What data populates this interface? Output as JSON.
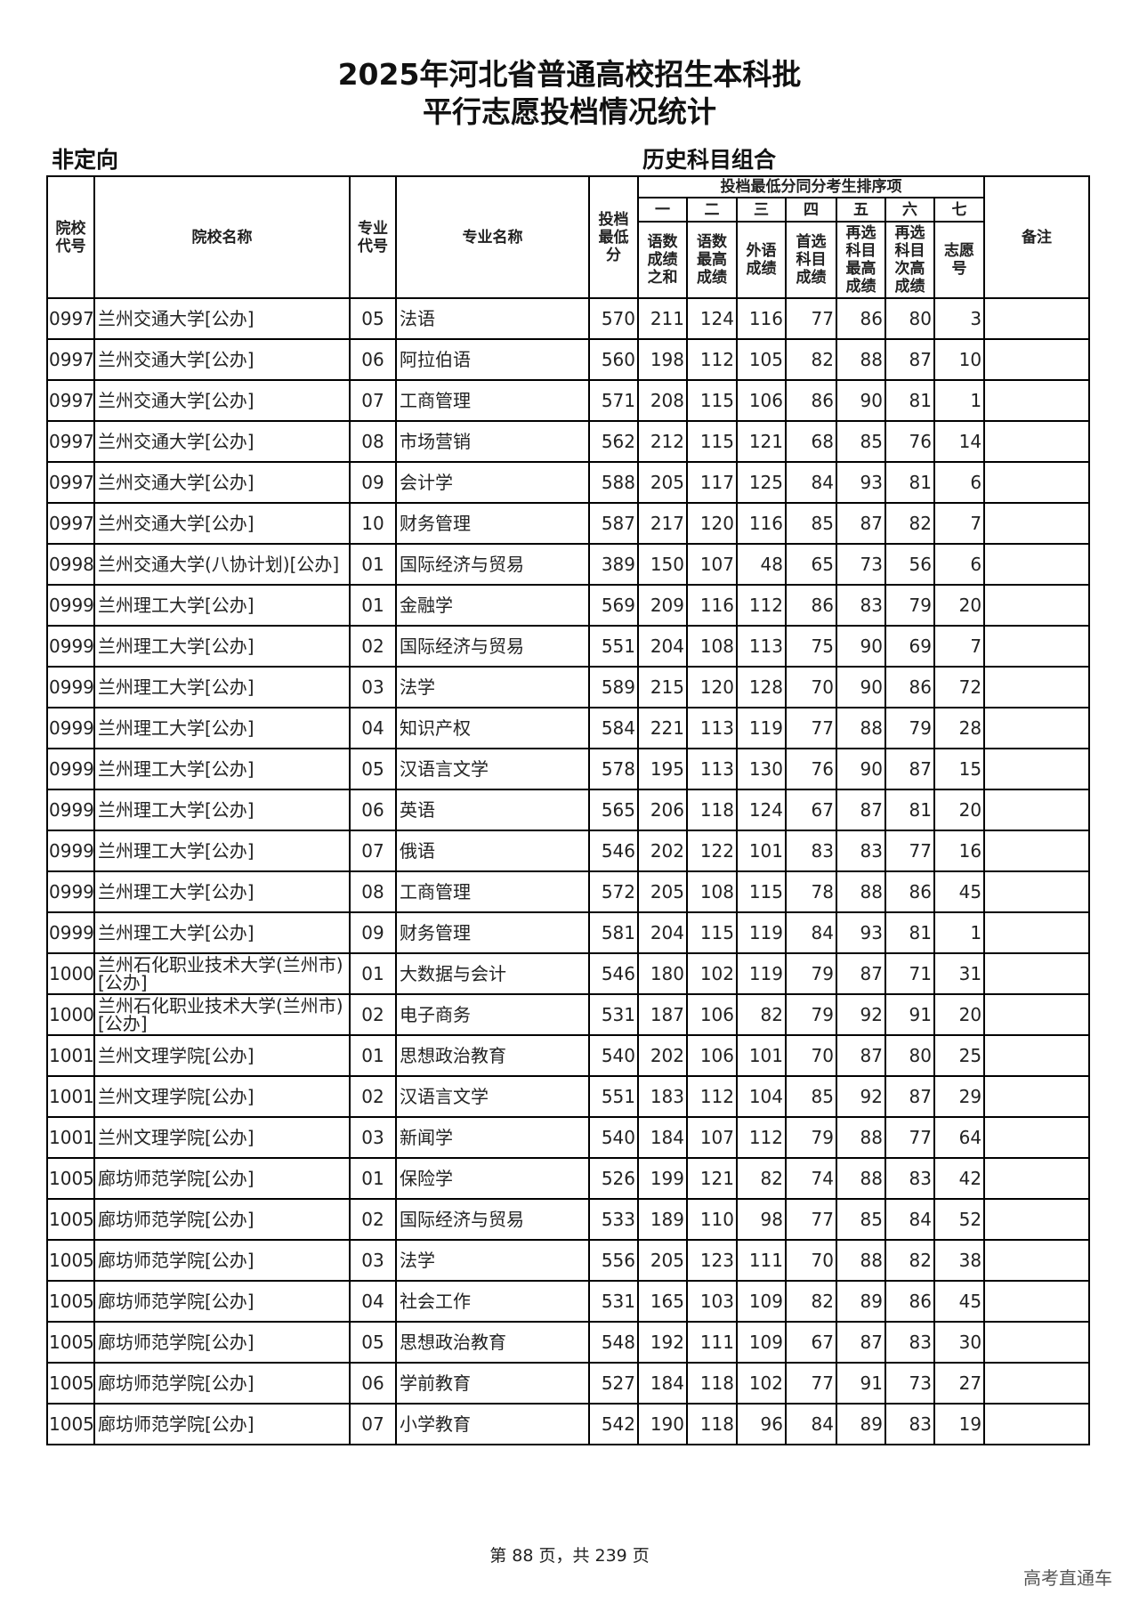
{
  "title": {
    "line1": "2025年河北省普通高校招生本科批",
    "line2": "平行志愿投档情况统计"
  },
  "subtitle_left": "非定向",
  "subtitle_right": "历史科目组合",
  "headers": {
    "school_code": "院校代号",
    "school_name": "院校名称",
    "major_code": "专业代号",
    "major_name": "专业名称",
    "min_score": "投档最低分",
    "group": "投档最低分同分考生排序项",
    "ranks": [
      "一",
      "二",
      "三",
      "四",
      "五",
      "六",
      "七"
    ],
    "rank_labels": [
      "语数成绩之和",
      "语数最高成绩",
      "外语成绩",
      "首选科目成绩",
      "再选科目最高成绩",
      "再选科目次高成绩",
      "志愿号"
    ],
    "remarks": "备注"
  },
  "rows": [
    [
      "0997",
      "兰州交通大学[公办]",
      "05",
      "法语",
      "570",
      "211",
      "124",
      "116",
      "77",
      "86",
      "80",
      "3",
      ""
    ],
    [
      "0997",
      "兰州交通大学[公办]",
      "06",
      "阿拉伯语",
      "560",
      "198",
      "112",
      "105",
      "82",
      "88",
      "87",
      "10",
      ""
    ],
    [
      "0997",
      "兰州交通大学[公办]",
      "07",
      "工商管理",
      "571",
      "208",
      "115",
      "106",
      "86",
      "90",
      "81",
      "1",
      ""
    ],
    [
      "0997",
      "兰州交通大学[公办]",
      "08",
      "市场营销",
      "562",
      "212",
      "115",
      "121",
      "68",
      "85",
      "76",
      "14",
      ""
    ],
    [
      "0997",
      "兰州交通大学[公办]",
      "09",
      "会计学",
      "588",
      "205",
      "117",
      "125",
      "84",
      "93",
      "81",
      "6",
      ""
    ],
    [
      "0997",
      "兰州交通大学[公办]",
      "10",
      "财务管理",
      "587",
      "217",
      "120",
      "116",
      "85",
      "87",
      "82",
      "7",
      ""
    ],
    [
      "0998",
      "兰州交通大学(八协计划)[公办]",
      "01",
      "国际经济与贸易",
      "389",
      "150",
      "107",
      "48",
      "65",
      "73",
      "56",
      "6",
      ""
    ],
    [
      "0999",
      "兰州理工大学[公办]",
      "01",
      "金融学",
      "569",
      "209",
      "116",
      "112",
      "86",
      "83",
      "79",
      "20",
      ""
    ],
    [
      "0999",
      "兰州理工大学[公办]",
      "02",
      "国际经济与贸易",
      "551",
      "204",
      "108",
      "113",
      "75",
      "90",
      "69",
      "7",
      ""
    ],
    [
      "0999",
      "兰州理工大学[公办]",
      "03",
      "法学",
      "589",
      "215",
      "120",
      "128",
      "70",
      "90",
      "86",
      "72",
      ""
    ],
    [
      "0999",
      "兰州理工大学[公办]",
      "04",
      "知识产权",
      "584",
      "221",
      "113",
      "119",
      "77",
      "88",
      "79",
      "28",
      ""
    ],
    [
      "0999",
      "兰州理工大学[公办]",
      "05",
      "汉语言文学",
      "578",
      "195",
      "113",
      "130",
      "76",
      "90",
      "87",
      "15",
      ""
    ],
    [
      "0999",
      "兰州理工大学[公办]",
      "06",
      "英语",
      "565",
      "206",
      "118",
      "124",
      "67",
      "87",
      "81",
      "20",
      ""
    ],
    [
      "0999",
      "兰州理工大学[公办]",
      "07",
      "俄语",
      "546",
      "202",
      "122",
      "101",
      "83",
      "83",
      "77",
      "16",
      ""
    ],
    [
      "0999",
      "兰州理工大学[公办]",
      "08",
      "工商管理",
      "572",
      "205",
      "108",
      "115",
      "78",
      "88",
      "86",
      "45",
      ""
    ],
    [
      "0999",
      "兰州理工大学[公办]",
      "09",
      "财务管理",
      "581",
      "204",
      "115",
      "119",
      "84",
      "93",
      "81",
      "1",
      ""
    ],
    [
      "1000",
      "兰州石化职业技术大学(兰州市)[公办]",
      "01",
      "大数据与会计",
      "546",
      "180",
      "102",
      "119",
      "79",
      "87",
      "71",
      "31",
      ""
    ],
    [
      "1000",
      "兰州石化职业技术大学(兰州市)[公办]",
      "02",
      "电子商务",
      "531",
      "187",
      "106",
      "82",
      "79",
      "92",
      "91",
      "20",
      ""
    ],
    [
      "1001",
      "兰州文理学院[公办]",
      "01",
      "思想政治教育",
      "540",
      "202",
      "106",
      "101",
      "70",
      "87",
      "80",
      "25",
      ""
    ],
    [
      "1001",
      "兰州文理学院[公办]",
      "02",
      "汉语言文学",
      "551",
      "183",
      "112",
      "104",
      "85",
      "92",
      "87",
      "29",
      ""
    ],
    [
      "1001",
      "兰州文理学院[公办]",
      "03",
      "新闻学",
      "540",
      "184",
      "107",
      "112",
      "79",
      "88",
      "77",
      "64",
      ""
    ],
    [
      "1005",
      "廊坊师范学院[公办]",
      "01",
      "保险学",
      "526",
      "199",
      "121",
      "82",
      "74",
      "88",
      "83",
      "42",
      ""
    ],
    [
      "1005",
      "廊坊师范学院[公办]",
      "02",
      "国际经济与贸易",
      "533",
      "189",
      "110",
      "98",
      "77",
      "85",
      "84",
      "52",
      ""
    ],
    [
      "1005",
      "廊坊师范学院[公办]",
      "03",
      "法学",
      "556",
      "205",
      "123",
      "111",
      "70",
      "88",
      "82",
      "38",
      ""
    ],
    [
      "1005",
      "廊坊师范学院[公办]",
      "04",
      "社会工作",
      "531",
      "165",
      "103",
      "109",
      "82",
      "89",
      "86",
      "45",
      ""
    ],
    [
      "1005",
      "廊坊师范学院[公办]",
      "05",
      "思想政治教育",
      "548",
      "192",
      "111",
      "109",
      "67",
      "87",
      "83",
      "30",
      ""
    ],
    [
      "1005",
      "廊坊师范学院[公办]",
      "06",
      "学前教育",
      "527",
      "184",
      "118",
      "102",
      "77",
      "91",
      "73",
      "27",
      ""
    ],
    [
      "1005",
      "廊坊师范学院[公办]",
      "07",
      "小学教育",
      "542",
      "190",
      "118",
      "96",
      "84",
      "89",
      "83",
      "19",
      ""
    ]
  ],
  "footer": "第 88 页，共 239 页",
  "watermark": "高考直通车"
}
